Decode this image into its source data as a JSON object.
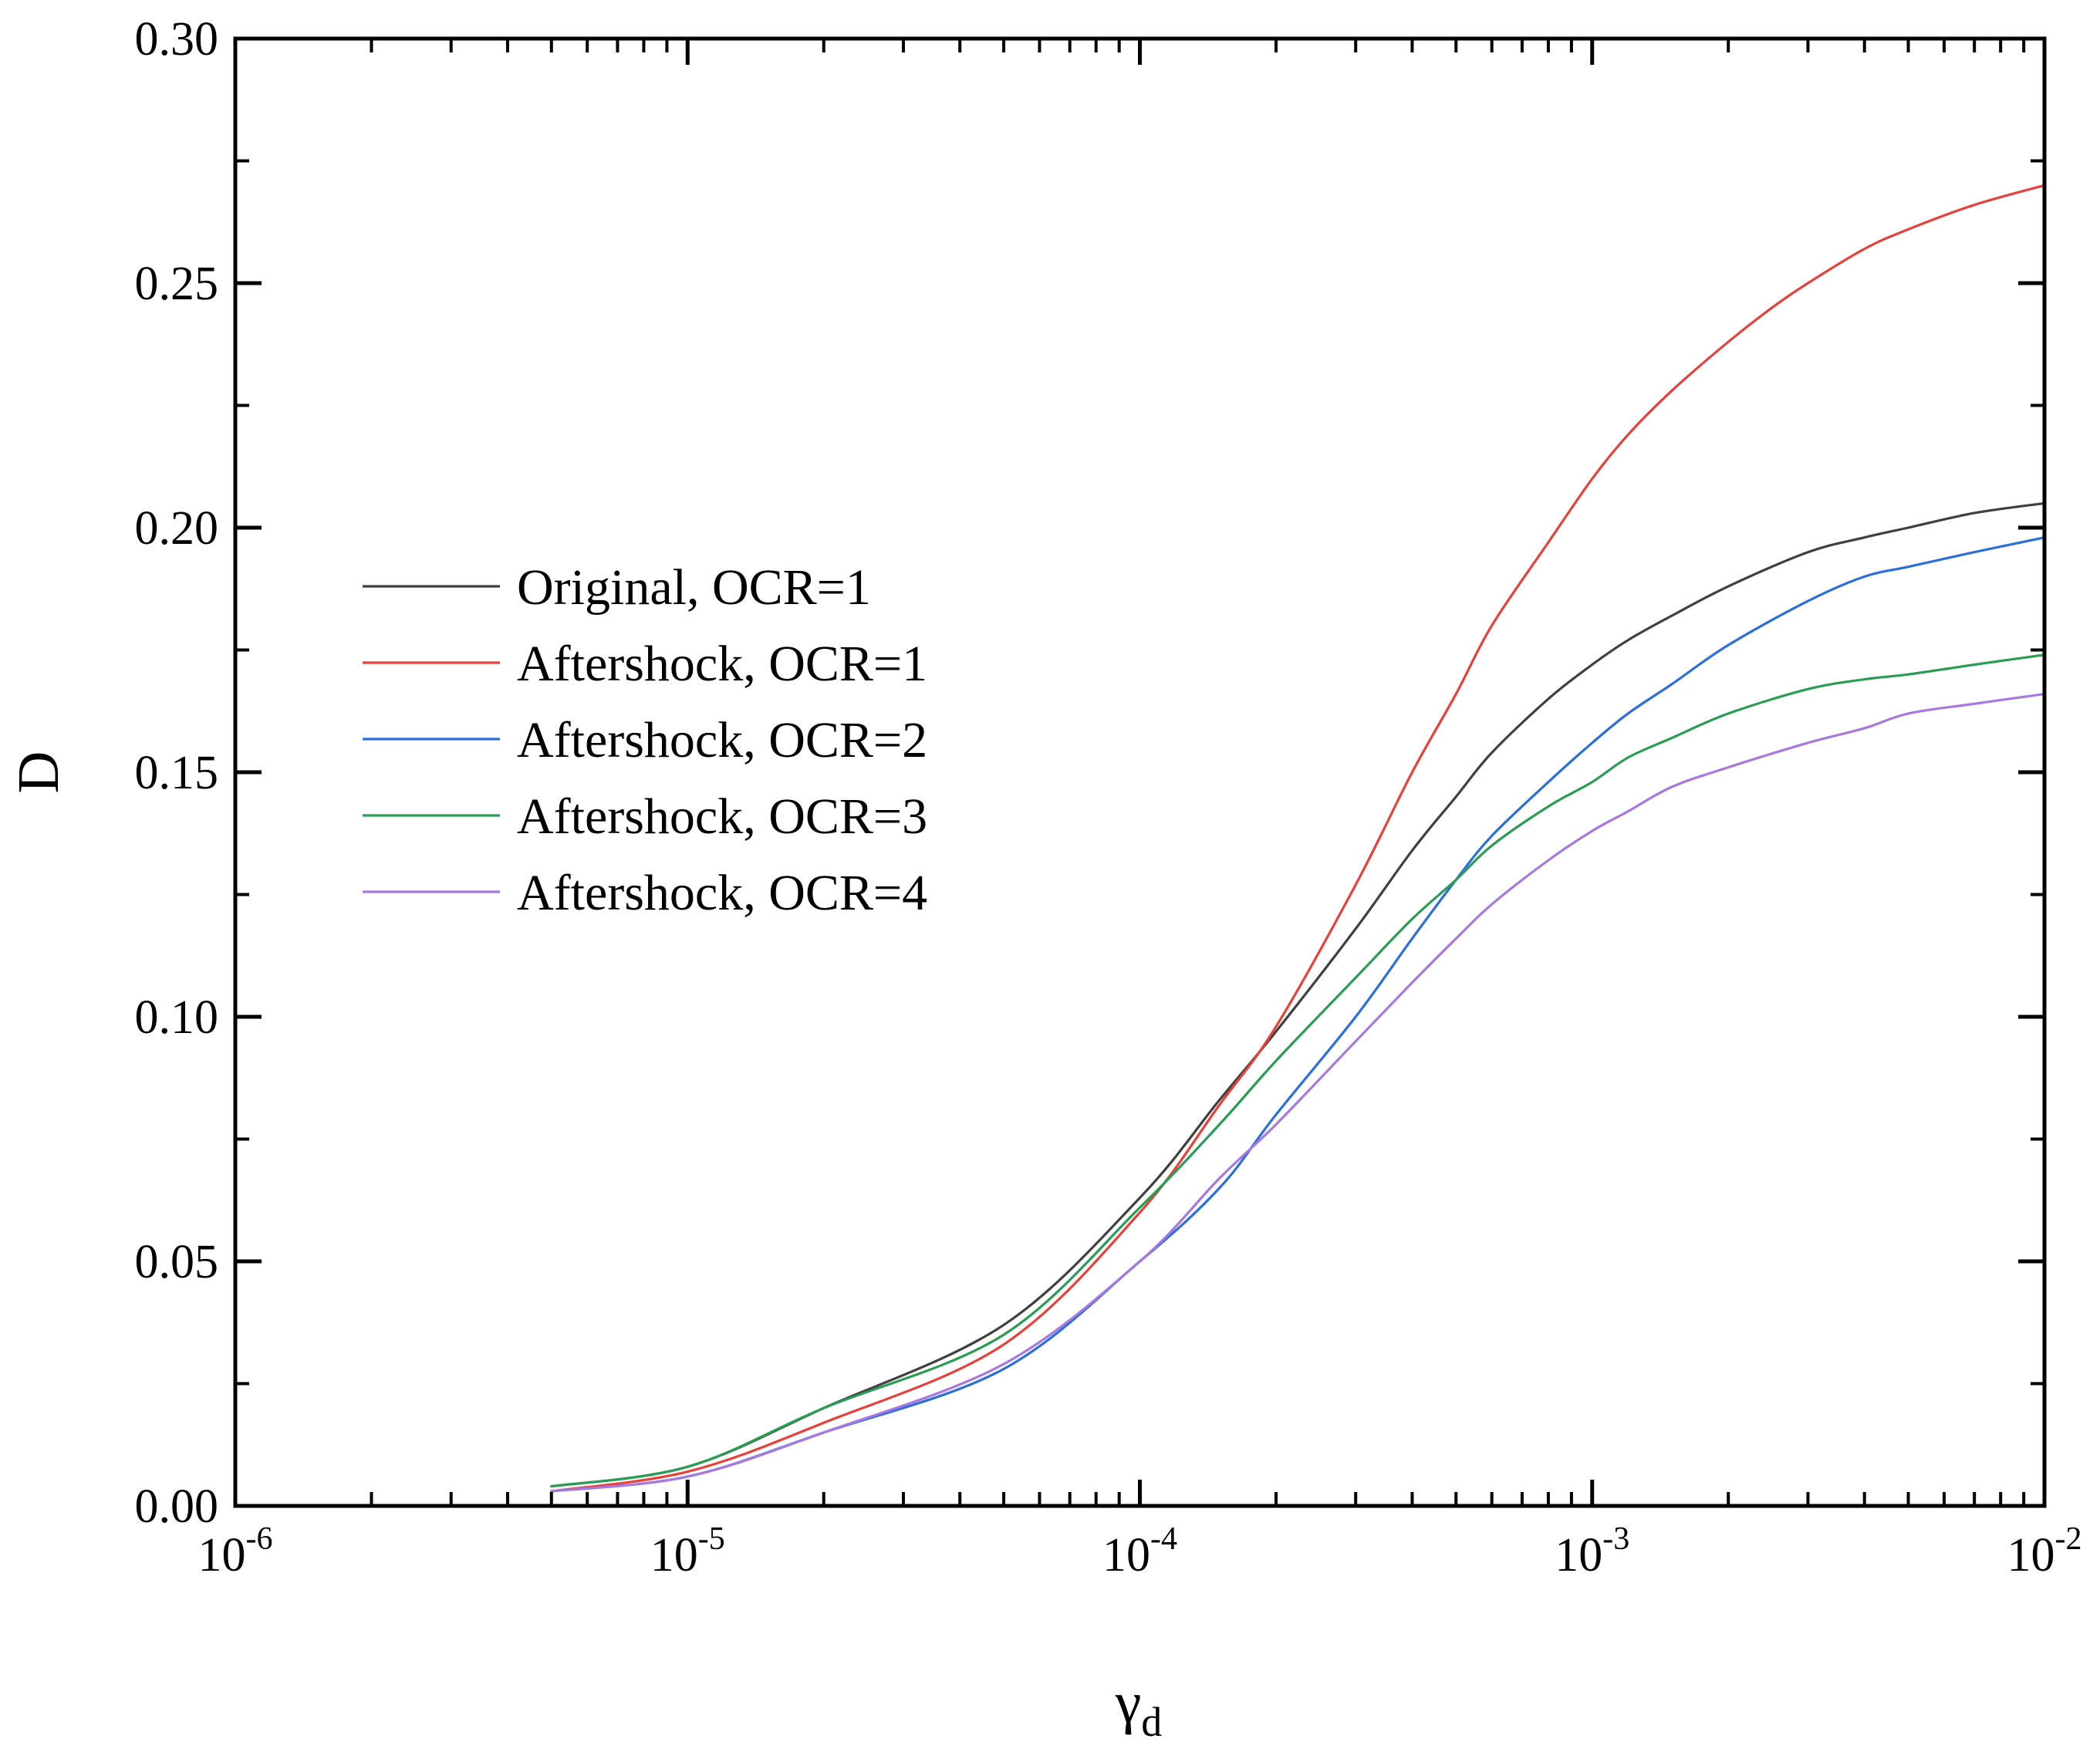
{
  "chart_data": {
    "type": "line",
    "title": "",
    "xlabel": {
      "base": "γ",
      "sub": "d"
    },
    "ylabel": "D",
    "xscale": "log",
    "xlim": [
      1e-06,
      0.01
    ],
    "ylim": [
      0,
      0.3
    ],
    "grid": false,
    "legend_position": "center-left",
    "x_ticks": [
      {
        "value": 1e-06,
        "base": "10",
        "exp": "-6"
      },
      {
        "value": 1e-05,
        "base": "10",
        "exp": "-5"
      },
      {
        "value": 0.0001,
        "base": "10",
        "exp": "-4"
      },
      {
        "value": 0.001,
        "base": "10",
        "exp": "-3"
      },
      {
        "value": 0.01,
        "base": "10",
        "exp": "-2"
      }
    ],
    "y_ticks": [
      {
        "value": 0.0,
        "label": "0.00"
      },
      {
        "value": 0.05,
        "label": "0.05"
      },
      {
        "value": 0.1,
        "label": "0.10"
      },
      {
        "value": 0.15,
        "label": "0.15"
      },
      {
        "value": 0.2,
        "label": "0.20"
      },
      {
        "value": 0.25,
        "label": "0.25"
      },
      {
        "value": 0.3,
        "label": "0.30"
      }
    ],
    "series": [
      {
        "name": "Original, OCR=1",
        "color": "#404040",
        "x": [
          5e-06,
          1e-05,
          2e-05,
          5e-05,
          0.0001,
          0.00015,
          0.0002,
          0.0003,
          0.0004,
          0.0005,
          0.0006,
          0.0008,
          0.001,
          0.0012,
          0.0015,
          0.002,
          0.003,
          0.004,
          0.005,
          0.007,
          0.01
        ],
        "y": [
          0.004,
          0.008,
          0.02,
          0.037,
          0.063,
          0.083,
          0.097,
          0.118,
          0.134,
          0.145,
          0.154,
          0.165,
          0.172,
          0.177,
          0.182,
          0.188,
          0.195,
          0.198,
          0.2,
          0.203,
          0.205
        ]
      },
      {
        "name": "Aftershock, OCR=1",
        "color": "#e8403b",
        "x": [
          5e-06,
          1e-05,
          2e-05,
          5e-05,
          0.0001,
          0.00015,
          0.0002,
          0.0003,
          0.0004,
          0.0005,
          0.0006,
          0.0008,
          0.001,
          0.0012,
          0.0015,
          0.002,
          0.0025,
          0.003,
          0.004,
          0.005,
          0.007,
          0.01
        ],
        "y": [
          0.003,
          0.007,
          0.017,
          0.033,
          0.06,
          0.082,
          0.098,
          0.127,
          0.15,
          0.166,
          0.18,
          0.197,
          0.21,
          0.219,
          0.228,
          0.238,
          0.245,
          0.25,
          0.257,
          0.261,
          0.266,
          0.27
        ]
      },
      {
        "name": "Aftershock, OCR=2",
        "color": "#2a6fdb",
        "x": [
          5e-06,
          1e-05,
          2e-05,
          5e-05,
          0.0001,
          0.00015,
          0.0002,
          0.0003,
          0.0004,
          0.0005,
          0.0006,
          0.0008,
          0.001,
          0.0012,
          0.0015,
          0.002,
          0.003,
          0.004,
          0.005,
          0.007,
          0.01
        ],
        "y": [
          0.003,
          0.006,
          0.015,
          0.028,
          0.05,
          0.065,
          0.08,
          0.1,
          0.116,
          0.128,
          0.137,
          0.148,
          0.156,
          0.162,
          0.168,
          0.176,
          0.185,
          0.19,
          0.192,
          0.195,
          0.198
        ]
      },
      {
        "name": "Aftershock, OCR=3",
        "color": "#2a9d55",
        "x": [
          5e-06,
          1e-05,
          2e-05,
          5e-05,
          0.0001,
          0.00015,
          0.0002,
          0.0003,
          0.0004,
          0.0005,
          0.0006,
          0.0008,
          0.001,
          0.0012,
          0.0015,
          0.002,
          0.003,
          0.004,
          0.005,
          0.007,
          0.01
        ],
        "y": [
          0.004,
          0.008,
          0.02,
          0.035,
          0.061,
          0.078,
          0.091,
          0.108,
          0.12,
          0.128,
          0.135,
          0.143,
          0.148,
          0.153,
          0.157,
          0.162,
          0.167,
          0.169,
          0.17,
          0.172,
          0.174
        ]
      },
      {
        "name": "Aftershock, OCR=4",
        "color": "#a779e0",
        "x": [
          5e-06,
          1e-05,
          2e-05,
          5e-05,
          0.0001,
          0.00015,
          0.0002,
          0.0003,
          0.0004,
          0.0005,
          0.0006,
          0.0008,
          0.001,
          0.0012,
          0.0015,
          0.002,
          0.003,
          0.004,
          0.005,
          0.007,
          0.01
        ],
        "y": [
          0.003,
          0.006,
          0.015,
          0.029,
          0.05,
          0.067,
          0.078,
          0.095,
          0.107,
          0.116,
          0.123,
          0.132,
          0.138,
          0.142,
          0.147,
          0.151,
          0.156,
          0.159,
          0.162,
          0.164,
          0.166
        ]
      }
    ]
  }
}
